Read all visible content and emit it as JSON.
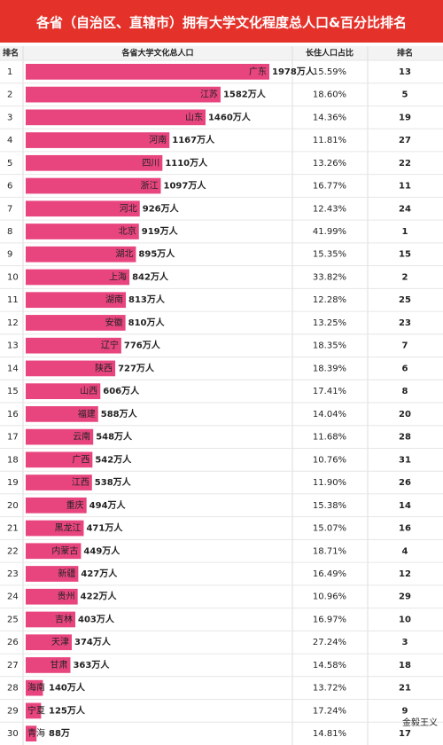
{
  "chart_data": {
    "type": "bar",
    "orientation": "horizontal",
    "title": "各省（自治区、直辖市）拥有大学文化程度总人口&百分比排名",
    "headers": [
      "排名",
      "各省大学文化总人口",
      "长住人口占比",
      "排名"
    ],
    "color": "#e8457f",
    "ranks": [
      1,
      2,
      3,
      4,
      5,
      6,
      7,
      8,
      9,
      10,
      11,
      12,
      13,
      14,
      15,
      16,
      17,
      18,
      19,
      20,
      21,
      22,
      23,
      24,
      25,
      26,
      27,
      28,
      29,
      30
    ],
    "categories": [
      "广东",
      "江苏",
      "山东",
      "河南",
      "四川",
      "浙江",
      "河北",
      "北京",
      "湖北",
      "上海",
      "湖南",
      "安徽",
      "辽宁",
      "陕西",
      "山西",
      "福建",
      "云南",
      "广西",
      "江西",
      "重庆",
      "黑龙江",
      "内蒙古",
      "新疆",
      "贵州",
      "吉林",
      "天津",
      "甘肃",
      "海南",
      "宁夏",
      "青海"
    ],
    "values": [
      1978,
      1582,
      1460,
      1167,
      1110,
      1097,
      926,
      919,
      895,
      842,
      813,
      810,
      776,
      727,
      606,
      588,
      548,
      542,
      538,
      494,
      471,
      449,
      427,
      422,
      403,
      374,
      363,
      140,
      125,
      88
    ],
    "value_labels": [
      "1978万人",
      "1582万人",
      "1460万人",
      "1167万人",
      "1110万人",
      "1097万人",
      "926万人",
      "919万人",
      "895万人",
      "842万人",
      "813万人",
      "810万人",
      "776万人",
      "727万人",
      "606万人",
      "588万人",
      "548万人",
      "542万人",
      "538万人",
      "494万人",
      "471万人",
      "449万人",
      "427万人",
      "422万人",
      "403万人",
      "374万人",
      "363万人",
      "140万人",
      "125万人",
      "88万"
    ],
    "shares": [
      "15.59%",
      "18.60%",
      "14.36%",
      "11.81%",
      "13.26%",
      "16.77%",
      "12.43%",
      "41.99%",
      "15.35%",
      "33.82%",
      "12.28%",
      "13.25%",
      "18.35%",
      "18.39%",
      "17.41%",
      "14.04%",
      "11.68%",
      "10.76%",
      "11.90%",
      "15.38%",
      "15.07%",
      "18.71%",
      "16.49%",
      "10.96%",
      "16.97%",
      "27.24%",
      "14.58%",
      "13.72%",
      "17.24%",
      "14.81%"
    ],
    "share_ranks": [
      13,
      5,
      19,
      27,
      22,
      11,
      24,
      1,
      15,
      2,
      25,
      23,
      7,
      6,
      8,
      20,
      28,
      31,
      26,
      14,
      16,
      4,
      12,
      29,
      10,
      3,
      18,
      21,
      9,
      17
    ],
    "watermark": "金毅王义"
  }
}
